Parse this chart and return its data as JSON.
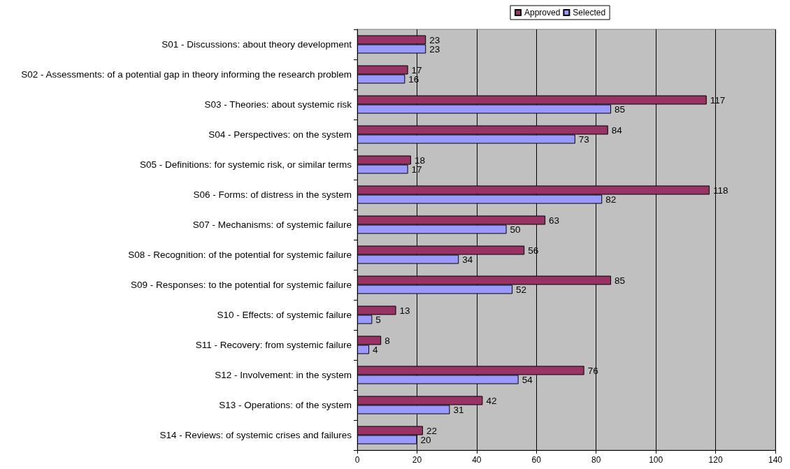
{
  "chart_data": {
    "type": "bar",
    "orientation": "horizontal",
    "categories": [
      "S01 - Discussions: about theory development",
      "S02 - Assessments: of a potential gap in theory informing the research problem",
      "S03 - Theories: about systemic risk",
      "S04 - Perspectives: on the system",
      "S05 - Definitions: for systemic risk, or similar terms",
      "S06 - Forms: of distress in the system",
      "S07 - Mechanisms: of systemic failure",
      "S08 - Recognition: of the potential for systemic failure",
      "S09 - Responses: to the potential for systemic failure",
      "S10 - Effects: of systemic failure",
      "S11 - Recovery: from systemic failure",
      "S12 - Involvement: in the system",
      "S13 - Operations: of the system",
      "S14 - Reviews: of systemic crises and failures"
    ],
    "series": [
      {
        "name": "Approved",
        "color": "#993366",
        "values": [
          23,
          17,
          117,
          84,
          18,
          118,
          63,
          56,
          85,
          13,
          8,
          76,
          42,
          22
        ]
      },
      {
        "name": "Selected",
        "color": "#9999ff",
        "values": [
          23,
          16,
          85,
          73,
          17,
          82,
          50,
          34,
          52,
          5,
          4,
          54,
          31,
          20
        ]
      }
    ],
    "xlim": [
      0,
      140
    ],
    "xticks": [
      0,
      20,
      40,
      60,
      80,
      100,
      120,
      140
    ],
    "grid": "x",
    "legend": "top right",
    "data_labels": true
  }
}
